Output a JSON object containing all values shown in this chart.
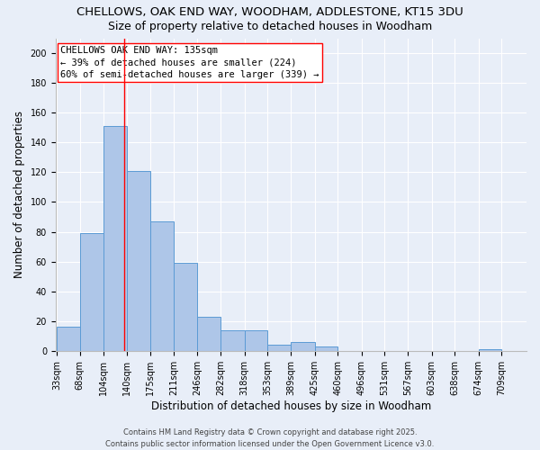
{
  "title": "CHELLOWS, OAK END WAY, WOODHAM, ADDLESTONE, KT15 3DU",
  "subtitle": "Size of property relative to detached houses in Woodham",
  "xlabel": "Distribution of detached houses by size in Woodham",
  "ylabel": "Number of detached properties",
  "bin_edges": [
    33,
    68,
    104,
    140,
    175,
    211,
    246,
    282,
    318,
    353,
    389,
    425,
    460,
    496,
    531,
    567,
    603,
    638,
    674,
    709,
    745
  ],
  "bar_heights": [
    16,
    79,
    151,
    121,
    87,
    59,
    23,
    14,
    14,
    4,
    6,
    3,
    0,
    0,
    0,
    0,
    0,
    0,
    1,
    0
  ],
  "bar_color": "#aec6e8",
  "bar_edge_color": "#5b9bd5",
  "background_color": "#e8eef8",
  "grid_color": "#ffffff",
  "red_line_x": 135,
  "annotation_text_line1": "CHELLOWS OAK END WAY: 135sqm",
  "annotation_text_line2": "← 39% of detached houses are smaller (224)",
  "annotation_text_line3": "60% of semi-detached houses are larger (339) →",
  "ylim": [
    0,
    210
  ],
  "yticks": [
    0,
    20,
    40,
    60,
    80,
    100,
    120,
    140,
    160,
    180,
    200
  ],
  "footer_line1": "Contains HM Land Registry data © Crown copyright and database right 2025.",
  "footer_line2": "Contains public sector information licensed under the Open Government Licence v3.0.",
  "title_fontsize": 9.5,
  "subtitle_fontsize": 9,
  "tick_label_fontsize": 7,
  "ylabel_fontsize": 8.5,
  "xlabel_fontsize": 8.5,
  "annotation_fontsize": 7.5,
  "footer_fontsize": 6
}
